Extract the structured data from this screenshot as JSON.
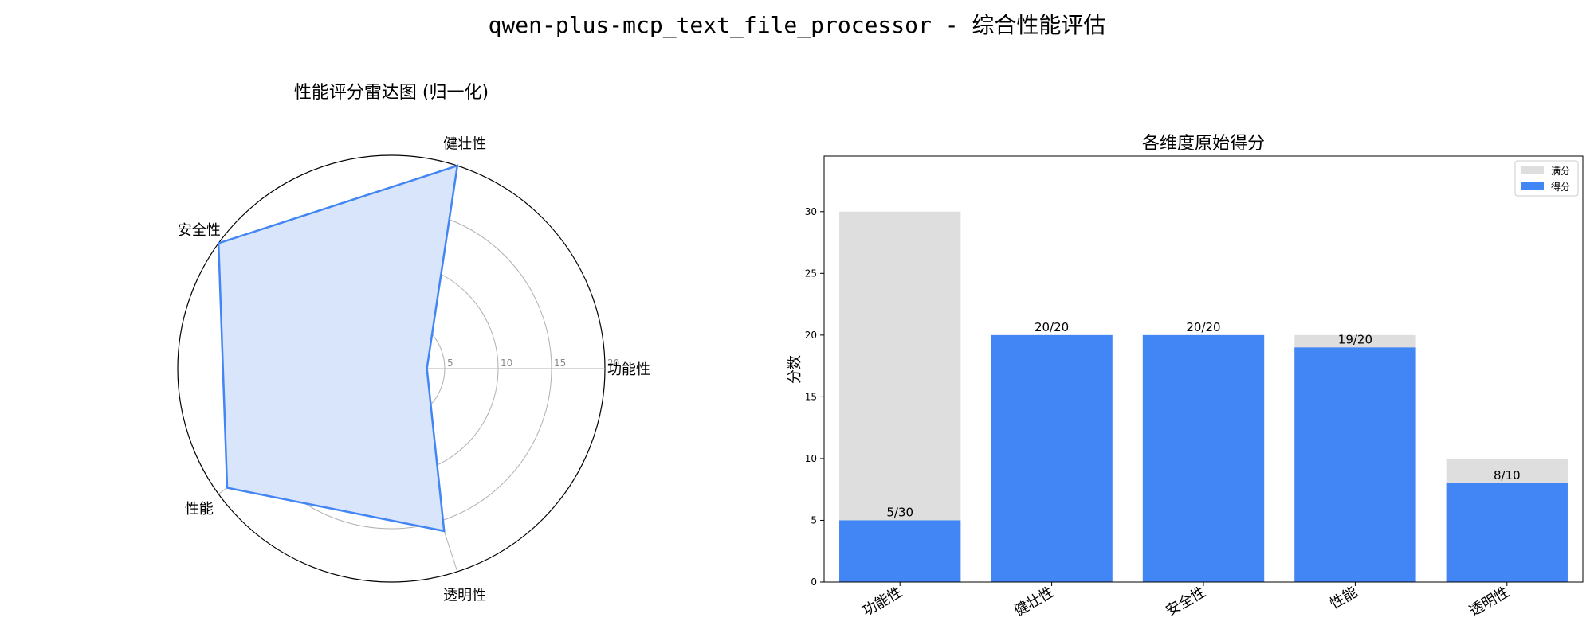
{
  "suptitle": "qwen-plus-mcp_text_file_processor - 综合性能评估",
  "colors": {
    "score": "#4285f4",
    "full": "#dedede",
    "radar_fill": "#d9e5fa",
    "grid": "#b0b0b0"
  },
  "chart_data": [
    {
      "type": "radar",
      "title": "性能评分雷达图 (归一化)",
      "categories": [
        "功能性",
        "健壮性",
        "安全性",
        "性能",
        "透明性"
      ],
      "values": [
        3.33,
        20,
        20,
        19,
        16
      ],
      "rlim": [
        0,
        20
      ],
      "radial_ticks": [
        5,
        10,
        15,
        20
      ],
      "grid": true
    },
    {
      "type": "bar",
      "title": "各维度原始得分",
      "categories": [
        "功能性",
        "健壮性",
        "安全性",
        "性能",
        "透明性"
      ],
      "series": [
        {
          "name": "满分",
          "values": [
            30,
            20,
            20,
            20,
            10
          ]
        },
        {
          "name": "得分",
          "values": [
            5,
            20,
            20,
            19,
            8
          ]
        }
      ],
      "bar_labels": [
        "5/30",
        "20/20",
        "20/20",
        "19/20",
        "8/10"
      ],
      "xlabel": "",
      "ylabel": "分数",
      "ylim": [
        0,
        34.5
      ],
      "yticks": [
        0,
        5,
        10,
        15,
        20,
        25,
        30
      ],
      "legend": "top-right",
      "grid": false
    }
  ]
}
